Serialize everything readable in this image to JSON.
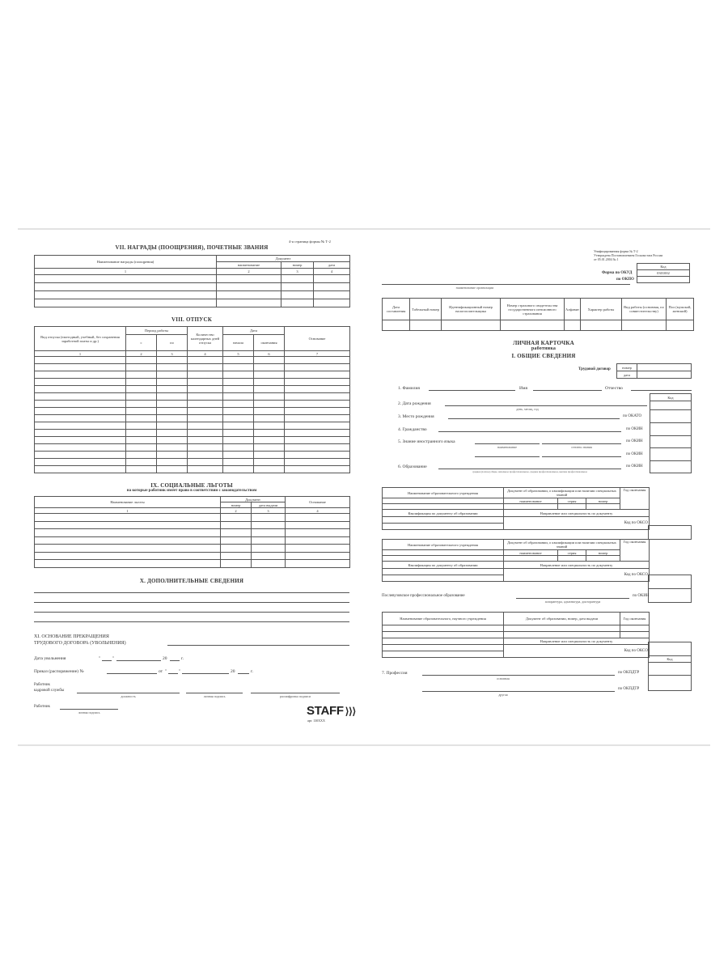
{
  "left_page": {
    "page_note": "4-я страница формы № Т-2",
    "awards": {
      "title": "VII. НАГРАДЫ (ПООЩРЕНИЯ), ПОЧЕТНЫЕ ЗВАНИЯ",
      "col_name": "Наименование награды (поощрения)",
      "col_doc": "Документ",
      "col_doc_name": "наименование",
      "col_doc_number": "номер",
      "col_doc_date": "дата",
      "nums": [
        "1",
        "2",
        "3",
        "4"
      ]
    },
    "vacation": {
      "title": "VIII. ОТПУСК",
      "col_type": "Вид отпуска (ежегодный, учебный, без сохранения заработной платы и др.)",
      "col_period": "Период работы",
      "col_from": "с",
      "col_to": "по",
      "col_days": "Количество календарных дней отпуска",
      "col_date": "Дата",
      "col_start": "начала",
      "col_end": "окончания",
      "col_basis": "Основание",
      "nums": [
        "1",
        "2",
        "3",
        "4",
        "5",
        "6",
        "7"
      ]
    },
    "benefits": {
      "title": "IX. СОЦИАЛЬНЫЕ ЛЬГОТЫ",
      "subtitle": "на которые работник имеет право в соответствии с законодательством",
      "col_name": "Наименование льготы",
      "col_doc": "Документ",
      "col_number": "номер",
      "col_date": "дата выдачи",
      "col_basis": "Основание",
      "nums": [
        "1",
        "2",
        "3",
        "4"
      ]
    },
    "additional": {
      "title": "X. ДОПОЛНИТЕЛЬНЫЕ СВЕДЕНИЯ"
    },
    "termination": {
      "title_line1": "XI. ОСНОВАНИЕ ПРЕКРАЩЕНИЯ",
      "title_line2": "ТРУДОВОГО ДОГОВОРА (УВОЛЬНЕНИЯ)",
      "dismissal_date": "Дата увольнения",
      "order": "Приказ (распоряжение) №",
      "from": "от",
      "year_prefix": "20",
      "year_suffix": "г.",
      "quote": "\"",
      "hr_worker_1": "Работник",
      "hr_worker_2": "кадровой службы",
      "cap_position": "должность",
      "cap_signature": "личная подпись",
      "cap_decoding": "расшифровка подписи",
      "employee": "Работник",
      "cap_emp_signature": "личная подпись"
    },
    "logo": {
      "brand": "STAFF",
      "article": "арт. 130XXX"
    }
  },
  "right_page": {
    "form_note_1": "Унифицированная форма № Т-2",
    "form_note_2": "Утверждена Постановлением Госкомстата России",
    "form_note_3": "от 05.01.2004 № 1",
    "code_header": "Код",
    "okud_label": "Форма по ОКУД",
    "okud_code": "0301002",
    "okpo_label": "по ОКПО",
    "org_caption": "наименование организации",
    "head_table": [
      "Дата составления",
      "Табельный номер",
      "Идентификационный номер налогоплательщика",
      "Номер страхового свидетельства государственного пенсионного страхования",
      "Алфавит",
      "Характер работы",
      "Вид работы (основная, по совместительству)",
      "Пол (мужской, женский)"
    ],
    "title": "ЛИЧНАЯ КАРТОЧКА",
    "title_sub": "работника",
    "section1": "I. ОБЩИЕ СВЕДЕНИЯ",
    "contract_label": "Трудовой договор",
    "contract_number": "номер",
    "contract_date": "дата",
    "fields": {
      "surname": "1. Фамилия",
      "name": "Имя",
      "patronymic": "Отчество",
      "code": "Код",
      "birth_date": "2. Дата рождения",
      "birth_caption": "день, месяц, год",
      "birth_place": "3. Место рождения",
      "okato": "по ОКАТО",
      "citizenship": "4. Гражданство",
      "okin": "по ОКИН",
      "language": "5. Знание иностранного языка",
      "lang_cap_name": "наименование",
      "lang_cap_level": "степень знания",
      "education": "6. Образование",
      "edu_caption": "среднее (полное) общее, начальное профессиональное, среднее профессиональное, высшее профессиональное"
    },
    "edu_table": {
      "institution": "Наименование образовательного учреждения",
      "doc": "Документ об образовании, о квалификации или наличии специальных знаний",
      "year": "Год окончания",
      "doc_name": "наименование",
      "series": "серия",
      "number": "номер",
      "qualification": "Квалификация по документу об образовании",
      "specialty": "Направление или специальность по документу",
      "okso": "Код по ОКСО"
    },
    "postgrad": {
      "label": "Послевузовское профессиональное образование",
      "okin": "по ОКИН",
      "caption": "аспирантура, адъюнктура, докторантура",
      "institution": "Наименование образовательного, научного учреждения",
      "doc": "Документ об образовании, номер, дата выдачи",
      "year": "Год окончания",
      "specialty": "Направление или специальность по документу",
      "okso": "Код по ОКСО"
    },
    "profession": {
      "code": "Код",
      "label": "7. Профессия",
      "okpdtr": "по ОКПДТР",
      "cap_main": "основная",
      "cap_other": "другая"
    }
  }
}
